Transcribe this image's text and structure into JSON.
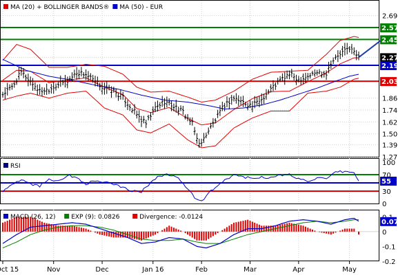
{
  "colors": {
    "red": "#e00000",
    "blue": "#0000c8",
    "green": "#008000",
    "black": "#000000",
    "grid": "#d0d0d0",
    "price_tag": "#000000",
    "arrow": "#1f3fa8"
  },
  "chart_data": [
    {
      "type": "line",
      "panel": "price",
      "legend": [
        {
          "name": "MA (20) + BOLLINGER BANDS®",
          "color": "#e00000"
        },
        {
          "name": "MA (50) - EUR",
          "color": "#0000c8"
        }
      ],
      "ylim": [
        1.27,
        2.75
      ],
      "y_ticks": [
        "2.69",
        "2.57",
        "2.45",
        "2.27",
        "2.19",
        "2.03",
        "1.86",
        "1.74",
        "1.62",
        "1.50",
        "1.39",
        "1.27"
      ],
      "y_tick_values": [
        2.69,
        2.57,
        2.45,
        2.27,
        2.19,
        2.03,
        1.86,
        1.74,
        1.62,
        1.5,
        1.39,
        1.27
      ],
      "levels": [
        {
          "value": 2.57,
          "label": "2.57",
          "color": "#008000"
        },
        {
          "value": 2.45,
          "label": "2.45",
          "color": "#008000"
        },
        {
          "value": 2.27,
          "label": "2.27",
          "color": "#000000",
          "no_line": true
        },
        {
          "value": 2.19,
          "label": "2.19",
          "color": "#0000c8"
        },
        {
          "value": 2.03,
          "label": "2.03",
          "color": "#e00000"
        }
      ],
      "price_anchors": [
        [
          0,
          1.9
        ],
        [
          4,
          1.97
        ],
        [
          8,
          2.12
        ],
        [
          12,
          2.03
        ],
        [
          16,
          1.93
        ],
        [
          20,
          1.95
        ],
        [
          24,
          2.0
        ],
        [
          28,
          2.03
        ],
        [
          32,
          2.12
        ],
        [
          36,
          2.1
        ],
        [
          40,
          2.02
        ],
        [
          44,
          1.96
        ],
        [
          48,
          1.93
        ],
        [
          52,
          1.86
        ],
        [
          56,
          1.75
        ],
        [
          60,
          1.64
        ],
        [
          62,
          1.6
        ],
        [
          66,
          1.76
        ],
        [
          70,
          1.83
        ],
        [
          74,
          1.78
        ],
        [
          78,
          1.72
        ],
        [
          82,
          1.6
        ],
        [
          84,
          1.45
        ],
        [
          86,
          1.4
        ],
        [
          88,
          1.5
        ],
        [
          92,
          1.64
        ],
        [
          96,
          1.79
        ],
        [
          100,
          1.86
        ],
        [
          104,
          1.82
        ],
        [
          108,
          1.78
        ],
        [
          112,
          1.85
        ],
        [
          116,
          1.95
        ],
        [
          120,
          2.04
        ],
        [
          124,
          2.1
        ],
        [
          128,
          2.05
        ],
        [
          132,
          2.08
        ],
        [
          136,
          2.12
        ],
        [
          140,
          2.11
        ],
        [
          142,
          2.22
        ],
        [
          146,
          2.3
        ],
        [
          150,
          2.37
        ],
        [
          152,
          2.32
        ],
        [
          154,
          2.27
        ]
      ],
      "bollinger_anchors": [
        [
          0,
          2.24,
          1.84
        ],
        [
          6,
          2.4,
          1.88
        ],
        [
          12,
          2.35,
          1.91
        ],
        [
          20,
          2.17,
          1.86
        ],
        [
          28,
          2.17,
          1.91
        ],
        [
          36,
          2.2,
          1.93
        ],
        [
          44,
          2.18,
          1.76
        ],
        [
          52,
          2.1,
          1.69
        ],
        [
          58,
          1.97,
          1.54
        ],
        [
          64,
          1.92,
          1.51
        ],
        [
          72,
          1.93,
          1.6
        ],
        [
          80,
          1.87,
          1.44
        ],
        [
          86,
          1.82,
          1.36
        ],
        [
          92,
          1.84,
          1.38
        ],
        [
          100,
          1.93,
          1.56
        ],
        [
          108,
          2.05,
          1.66
        ],
        [
          116,
          2.12,
          1.73
        ],
        [
          124,
          2.13,
          1.73
        ],
        [
          132,
          2.14,
          1.91
        ],
        [
          140,
          2.3,
          1.93
        ],
        [
          146,
          2.44,
          1.97
        ],
        [
          152,
          2.48,
          2.05
        ],
        [
          154,
          2.47,
          2.06
        ]
      ],
      "ma50_anchors": [
        [
          0,
          2.25
        ],
        [
          10,
          2.14
        ],
        [
          20,
          2.08
        ],
        [
          30,
          2.04
        ],
        [
          40,
          1.99
        ],
        [
          50,
          1.95
        ],
        [
          60,
          1.89
        ],
        [
          70,
          1.84
        ],
        [
          80,
          1.82
        ],
        [
          90,
          1.78
        ],
        [
          96,
          1.75
        ],
        [
          104,
          1.76
        ],
        [
          112,
          1.79
        ],
        [
          120,
          1.84
        ],
        [
          128,
          1.9
        ],
        [
          136,
          1.96
        ],
        [
          144,
          2.03
        ],
        [
          150,
          2.08
        ],
        [
          154,
          2.1
        ]
      ],
      "trend_arrow": {
        "from": [
          154,
          2.27
        ],
        "to": [
          164,
          2.48
        ]
      }
    },
    {
      "type": "line",
      "panel": "rsi",
      "legend": [
        {
          "name": "RSI",
          "color": "#000080"
        }
      ],
      "ylim": [
        0,
        100
      ],
      "y_ticks": [
        "100",
        "70",
        "55",
        "30",
        "0"
      ],
      "y_tick_values": [
        100,
        70,
        55,
        30,
        0
      ],
      "levels": [
        {
          "value": 70,
          "color": "#008000"
        },
        {
          "value": 50,
          "color": "#0000c8"
        },
        {
          "value": 30,
          "color": "#e00000"
        }
      ],
      "current": {
        "value": 55,
        "label": "55"
      },
      "anchors": [
        [
          0,
          30
        ],
        [
          3,
          42
        ],
        [
          6,
          55
        ],
        [
          9,
          58
        ],
        [
          12,
          48
        ],
        [
          16,
          42
        ],
        [
          20,
          60
        ],
        [
          24,
          55
        ],
        [
          28,
          68
        ],
        [
          32,
          63
        ],
        [
          36,
          48
        ],
        [
          40,
          55
        ],
        [
          44,
          52
        ],
        [
          48,
          45
        ],
        [
          52,
          40
        ],
        [
          56,
          30
        ],
        [
          60,
          28
        ],
        [
          64,
          52
        ],
        [
          68,
          68
        ],
        [
          72,
          70
        ],
        [
          76,
          62
        ],
        [
          80,
          35
        ],
        [
          84,
          8
        ],
        [
          86,
          5
        ],
        [
          90,
          30
        ],
        [
          96,
          55
        ],
        [
          100,
          70
        ],
        [
          104,
          65
        ],
        [
          108,
          60
        ],
        [
          112,
          65
        ],
        [
          116,
          62
        ],
        [
          120,
          68
        ],
        [
          124,
          70
        ],
        [
          128,
          60
        ],
        [
          132,
          55
        ],
        [
          136,
          62
        ],
        [
          140,
          58
        ],
        [
          144,
          75
        ],
        [
          148,
          78
        ],
        [
          152,
          74
        ],
        [
          154,
          55
        ]
      ]
    },
    {
      "type": "line",
      "panel": "macd",
      "legend": [
        {
          "name": "MACD (26, 12)",
          "color": "#0000c8"
        },
        {
          "name": "EXP (9): 0.0826",
          "color": "#008000"
        },
        {
          "name": "Divergence: -0.0124",
          "color": "#e00000"
        }
      ],
      "ylim": [
        -0.2,
        0.12
      ],
      "y_ticks": [
        "0.1",
        "0.07",
        "0",
        "-0.1",
        "-0.2"
      ],
      "y_tick_values": [
        0.1,
        0.07,
        0,
        -0.1,
        -0.2
      ],
      "current": {
        "value": 0.07,
        "label": "0.07"
      },
      "macd_anchors": [
        [
          0,
          -0.08
        ],
        [
          6,
          -0.02
        ],
        [
          12,
          0.03
        ],
        [
          18,
          0.04
        ],
        [
          24,
          0.05
        ],
        [
          30,
          0.06
        ],
        [
          36,
          0.05
        ],
        [
          42,
          0.02
        ],
        [
          48,
          -0.01
        ],
        [
          54,
          -0.04
        ],
        [
          60,
          -0.08
        ],
        [
          66,
          -0.07
        ],
        [
          72,
          -0.04
        ],
        [
          78,
          -0.05
        ],
        [
          84,
          -0.1
        ],
        [
          88,
          -0.11
        ],
        [
          94,
          -0.08
        ],
        [
          100,
          -0.02
        ],
        [
          106,
          0.02
        ],
        [
          112,
          0.02
        ],
        [
          118,
          0.04
        ],
        [
          124,
          0.07
        ],
        [
          130,
          0.08
        ],
        [
          136,
          0.07
        ],
        [
          142,
          0.05
        ],
        [
          148,
          0.08
        ],
        [
          152,
          0.09
        ],
        [
          154,
          0.07
        ]
      ],
      "signal_anchors": [
        [
          0,
          -0.11
        ],
        [
          6,
          -0.07
        ],
        [
          12,
          -0.02
        ],
        [
          18,
          0.01
        ],
        [
          24,
          0.03
        ],
        [
          30,
          0.04
        ],
        [
          36,
          0.04
        ],
        [
          42,
          0.03
        ],
        [
          48,
          0.01
        ],
        [
          54,
          -0.02
        ],
        [
          60,
          -0.05
        ],
        [
          66,
          -0.06
        ],
        [
          72,
          -0.06
        ],
        [
          78,
          -0.05
        ],
        [
          84,
          -0.07
        ],
        [
          88,
          -0.08
        ],
        [
          94,
          -0.08
        ],
        [
          100,
          -0.05
        ],
        [
          106,
          -0.02
        ],
        [
          112,
          0.0
        ],
        [
          118,
          0.02
        ],
        [
          124,
          0.04
        ],
        [
          130,
          0.06
        ],
        [
          136,
          0.07
        ],
        [
          142,
          0.06
        ],
        [
          148,
          0.07
        ],
        [
          152,
          0.08
        ],
        [
          154,
          0.08
        ]
      ]
    }
  ],
  "x_axis": {
    "bars": 155,
    "ticks": [
      {
        "label": "Oct 15",
        "bar": 0
      },
      {
        "label": "Nov",
        "bar": 22
      },
      {
        "label": "Dec",
        "bar": 43
      },
      {
        "label": "Jan 16",
        "bar": 65
      },
      {
        "label": "Feb",
        "bar": 86
      },
      {
        "label": "Mar",
        "bar": 107
      },
      {
        "label": "Apr",
        "bar": 128
      },
      {
        "label": "May",
        "bar": 150
      }
    ]
  }
}
